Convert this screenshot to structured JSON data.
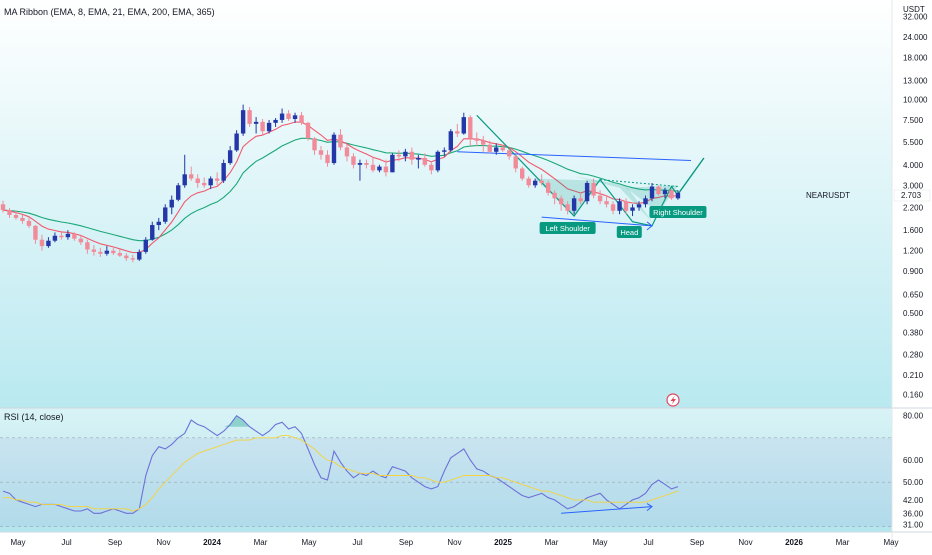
{
  "chart_data": [
    {
      "type": "candlestick",
      "title": "MA Ribbon (EMA, 8, EMA, 21, EMA, 200, EMA, 365)",
      "symbol": "NEARUSDT",
      "last_price": "2.703",
      "currency": "USDT",
      "y_scale": "log",
      "ylim": [
        0.14,
        36
      ],
      "y_ticks": [
        "32.000",
        "24.000",
        "18.000",
        "13.000",
        "10.000",
        "7.500",
        "5.500",
        "4.000",
        "3.000",
        "2.200",
        "1.600",
        "1.200",
        "0.900",
        "0.650",
        "0.500",
        "0.380",
        "0.280",
        "0.210",
        "0.160"
      ],
      "x_ticks": [
        "May",
        "Jul",
        "Sep",
        "Nov",
        "2024",
        "Mar",
        "May",
        "Jul",
        "Sep",
        "Nov",
        "2025",
        "Mar",
        "May",
        "Jul",
        "Sep",
        "Nov",
        "2026",
        "Mar",
        "May"
      ],
      "x_unit": "weeks",
      "candles_weekly_ohlc": [
        [
          2.3,
          2.42,
          2.05,
          2.12
        ],
        [
          2.12,
          2.18,
          1.9,
          1.98
        ],
        [
          1.98,
          2.1,
          1.85,
          1.9
        ],
        [
          1.9,
          1.98,
          1.75,
          1.82
        ],
        [
          1.82,
          1.9,
          1.65,
          1.7
        ],
        [
          1.7,
          1.72,
          1.32,
          1.4
        ],
        [
          1.4,
          1.5,
          1.2,
          1.28
        ],
        [
          1.28,
          1.45,
          1.25,
          1.38
        ],
        [
          1.38,
          1.55,
          1.35,
          1.48
        ],
        [
          1.48,
          1.55,
          1.4,
          1.45
        ],
        [
          1.45,
          1.6,
          1.4,
          1.52
        ],
        [
          1.52,
          1.55,
          1.38,
          1.42
        ],
        [
          1.42,
          1.48,
          1.3,
          1.35
        ],
        [
          1.35,
          1.4,
          1.15,
          1.22
        ],
        [
          1.22,
          1.3,
          1.12,
          1.18
        ],
        [
          1.18,
          1.25,
          1.1,
          1.15
        ],
        [
          1.15,
          1.28,
          1.12,
          1.2
        ],
        [
          1.2,
          1.25,
          1.13,
          1.16
        ],
        [
          1.16,
          1.22,
          1.1,
          1.12
        ],
        [
          1.12,
          1.16,
          1.04,
          1.08
        ],
        [
          1.08,
          1.13,
          1.02,
          1.06
        ],
        [
          1.06,
          1.22,
          1.04,
          1.18
        ],
        [
          1.18,
          1.45,
          1.15,
          1.4
        ],
        [
          1.4,
          1.8,
          1.38,
          1.72
        ],
        [
          1.72,
          1.9,
          1.6,
          1.8
        ],
        [
          1.8,
          2.3,
          1.75,
          2.2
        ],
        [
          2.2,
          2.6,
          2.0,
          2.45
        ],
        [
          2.45,
          3.1,
          2.4,
          3.0
        ],
        [
          3.0,
          4.6,
          2.9,
          3.5
        ],
        [
          3.5,
          3.9,
          3.2,
          3.3
        ],
        [
          3.3,
          3.5,
          2.9,
          3.1
        ],
        [
          3.1,
          3.35,
          2.9,
          3.0
        ],
        [
          3.0,
          3.4,
          2.85,
          3.3
        ],
        [
          3.3,
          3.6,
          3.0,
          3.2
        ],
        [
          3.2,
          4.3,
          3.1,
          4.1
        ],
        [
          4.1,
          5.2,
          4.0,
          4.9
        ],
        [
          4.9,
          6.5,
          4.8,
          6.2
        ],
        [
          6.2,
          9.3,
          6.0,
          8.6
        ],
        [
          8.6,
          9.0,
          6.8,
          7.1
        ],
        [
          7.1,
          7.8,
          6.2,
          7.3
        ],
        [
          7.3,
          7.6,
          6.0,
          6.4
        ],
        [
          6.4,
          7.5,
          6.2,
          7.2
        ],
        [
          7.2,
          7.7,
          6.8,
          7.5
        ],
        [
          7.5,
          8.8,
          7.2,
          8.2
        ],
        [
          8.2,
          8.6,
          7.4,
          7.6
        ],
        [
          7.6,
          8.3,
          7.2,
          8.0
        ],
        [
          8.0,
          8.4,
          7.0,
          7.2
        ],
        [
          7.2,
          7.3,
          5.6,
          5.8
        ],
        [
          5.8,
          5.9,
          4.6,
          4.9
        ],
        [
          4.9,
          5.2,
          4.3,
          4.6
        ],
        [
          4.6,
          4.9,
          3.9,
          4.1
        ],
        [
          4.1,
          6.3,
          4.0,
          6.1
        ],
        [
          6.1,
          6.6,
          4.9,
          5.1
        ],
        [
          5.1,
          5.3,
          4.2,
          4.5
        ],
        [
          4.5,
          4.7,
          3.8,
          4.0
        ],
        [
          4.0,
          4.3,
          3.2,
          4.1
        ],
        [
          4.1,
          4.3,
          3.8,
          4.0
        ],
        [
          4.0,
          4.4,
          3.6,
          3.7
        ],
        [
          3.7,
          4.0,
          3.6,
          3.9
        ],
        [
          3.9,
          4.3,
          3.4,
          3.6
        ],
        [
          3.6,
          4.7,
          3.6,
          4.6
        ],
        [
          4.6,
          4.9,
          4.2,
          4.5
        ],
        [
          4.5,
          5.0,
          4.2,
          4.8
        ],
        [
          4.8,
          5.1,
          4.0,
          4.3
        ],
        [
          4.3,
          4.6,
          3.8,
          4.4
        ],
        [
          4.4,
          4.7,
          3.9,
          4.0
        ],
        [
          4.0,
          4.2,
          3.5,
          3.7
        ],
        [
          3.7,
          4.9,
          3.6,
          4.8
        ],
        [
          4.8,
          5.1,
          4.5,
          4.9
        ],
        [
          4.9,
          6.6,
          4.8,
          6.4
        ],
        [
          6.4,
          7.1,
          5.9,
          6.2
        ],
        [
          6.2,
          8.3,
          6.1,
          7.8
        ],
        [
          7.8,
          8.0,
          5.2,
          5.8
        ],
        [
          5.8,
          6.3,
          5.2,
          5.6
        ],
        [
          5.6,
          6.0,
          4.8,
          5.3
        ],
        [
          5.3,
          5.6,
          4.7,
          4.8
        ],
        [
          4.8,
          5.4,
          4.6,
          5.1
        ],
        [
          5.1,
          5.3,
          4.8,
          4.9
        ],
        [
          4.9,
          5.0,
          4.3,
          4.5
        ],
        [
          4.5,
          4.6,
          3.6,
          3.8
        ],
        [
          3.8,
          3.9,
          3.2,
          3.3
        ],
        [
          3.3,
          3.4,
          2.9,
          3.0
        ],
        [
          3.0,
          3.3,
          2.9,
          3.2
        ],
        [
          3.2,
          3.5,
          3.0,
          3.1
        ],
        [
          3.1,
          3.2,
          2.6,
          2.7
        ],
        [
          2.7,
          2.8,
          2.3,
          2.5
        ],
        [
          2.5,
          2.6,
          2.1,
          2.3
        ],
        [
          2.3,
          2.4,
          2.0,
          2.1
        ],
        [
          2.1,
          2.6,
          2.0,
          2.5
        ],
        [
          2.5,
          2.7,
          2.3,
          2.4
        ],
        [
          2.4,
          3.2,
          2.3,
          3.1
        ],
        [
          3.1,
          3.3,
          2.5,
          2.6
        ],
        [
          2.6,
          2.8,
          2.3,
          2.4
        ],
        [
          2.4,
          2.6,
          2.2,
          2.3
        ],
        [
          2.3,
          2.4,
          2.0,
          2.1
        ],
        [
          2.1,
          2.5,
          2.0,
          2.4
        ],
        [
          2.4,
          2.5,
          2.0,
          2.1
        ],
        [
          2.1,
          2.3,
          1.95,
          2.2
        ],
        [
          2.2,
          2.4,
          2.1,
          2.3
        ],
        [
          2.3,
          2.6,
          2.2,
          2.5
        ],
        [
          2.5,
          3.1,
          2.4,
          2.95
        ],
        [
          2.95,
          3.0,
          2.6,
          2.65
        ],
        [
          2.65,
          2.9,
          2.5,
          2.8
        ],
        [
          2.8,
          2.85,
          2.45,
          2.5
        ],
        [
          2.5,
          2.8,
          2.45,
          2.7
        ]
      ],
      "overlays": {
        "emas": [
          "EMA 8",
          "EMA 21",
          "EMA 200",
          "EMA 365"
        ],
        "ema_colors": {
          "fast": "#f05a6e",
          "slow": "#1aa878"
        },
        "trendline_color": "#2962ff",
        "pattern_color": "#089981",
        "pattern_fill": "rgba(8,153,129,0.18)"
      },
      "annotations": [
        {
          "label": "Left Shoulder"
        },
        {
          "label": "Head"
        },
        {
          "label": "Right Shoulder"
        }
      ],
      "colors": {
        "up": "#2337a8",
        "down": "#f28b99",
        "background_top": "#ffffff",
        "background_bottom": "#b9e9f0",
        "price_label_bg": "#ffffff"
      }
    },
    {
      "type": "line",
      "title": "RSI (14, close)",
      "y_scale": "linear",
      "ylim": [
        28,
        83
      ],
      "y_ticks": [
        "80.00",
        "60.00",
        "50.00",
        "42.00",
        "36.00",
        "31.00"
      ],
      "bands": [
        30,
        70
      ],
      "series": [
        {
          "values": [
            46,
            45,
            42,
            41,
            40,
            39,
            40,
            40,
            40,
            39,
            38,
            37,
            37,
            38,
            36,
            36,
            37,
            38,
            37,
            36,
            36,
            38,
            53,
            62,
            66,
            65,
            67,
            70,
            72,
            78,
            76,
            75,
            73,
            71,
            73,
            76,
            80,
            78,
            75,
            73,
            71,
            73,
            76,
            77,
            74,
            75,
            72,
            65,
            58,
            52,
            51,
            64,
            59,
            55,
            52,
            54,
            53,
            55,
            53,
            52,
            57,
            56,
            55,
            52,
            50,
            48,
            47,
            48,
            55,
            61,
            63,
            65,
            60,
            56,
            55,
            53,
            52,
            50,
            48,
            46,
            44,
            43,
            44,
            45,
            43,
            42,
            40,
            38,
            39,
            41,
            43,
            44,
            45,
            42,
            40,
            38,
            40,
            42,
            43,
            45,
            49,
            51,
            49,
            47,
            48
          ],
          "color": "#6c71d8"
        },
        {
          "values": [
            43,
            43,
            42,
            42,
            41,
            41,
            40,
            40,
            40,
            40,
            39,
            39,
            39,
            39,
            38,
            38,
            38,
            38,
            38,
            38,
            37,
            38,
            40,
            43,
            47,
            50,
            53,
            56,
            59,
            61,
            63,
            64,
            65,
            66,
            67,
            68,
            69,
            69,
            69,
            70,
            70,
            70,
            70,
            71,
            71,
            70,
            69,
            67,
            65,
            62,
            60,
            59,
            57,
            56,
            55,
            54,
            54,
            54,
            53,
            53,
            53,
            53,
            53,
            53,
            52,
            52,
            51,
            50,
            50,
            51,
            52,
            53,
            53,
            53,
            53,
            53,
            52,
            52,
            51,
            50,
            49,
            48,
            47,
            46,
            46,
            45,
            44,
            43,
            42,
            42,
            42,
            41,
            41,
            41,
            41,
            41,
            41,
            41,
            41,
            41,
            42,
            43,
            44,
            45,
            46
          ],
          "color": "#f5d33b"
        }
      ],
      "colors": {
        "band_fill": "rgba(126,87,194,0.08)",
        "overbought_fill": "rgba(8,153,129,0.35)"
      }
    }
  ],
  "watermark_icon": "tradingview-bolt-icon"
}
